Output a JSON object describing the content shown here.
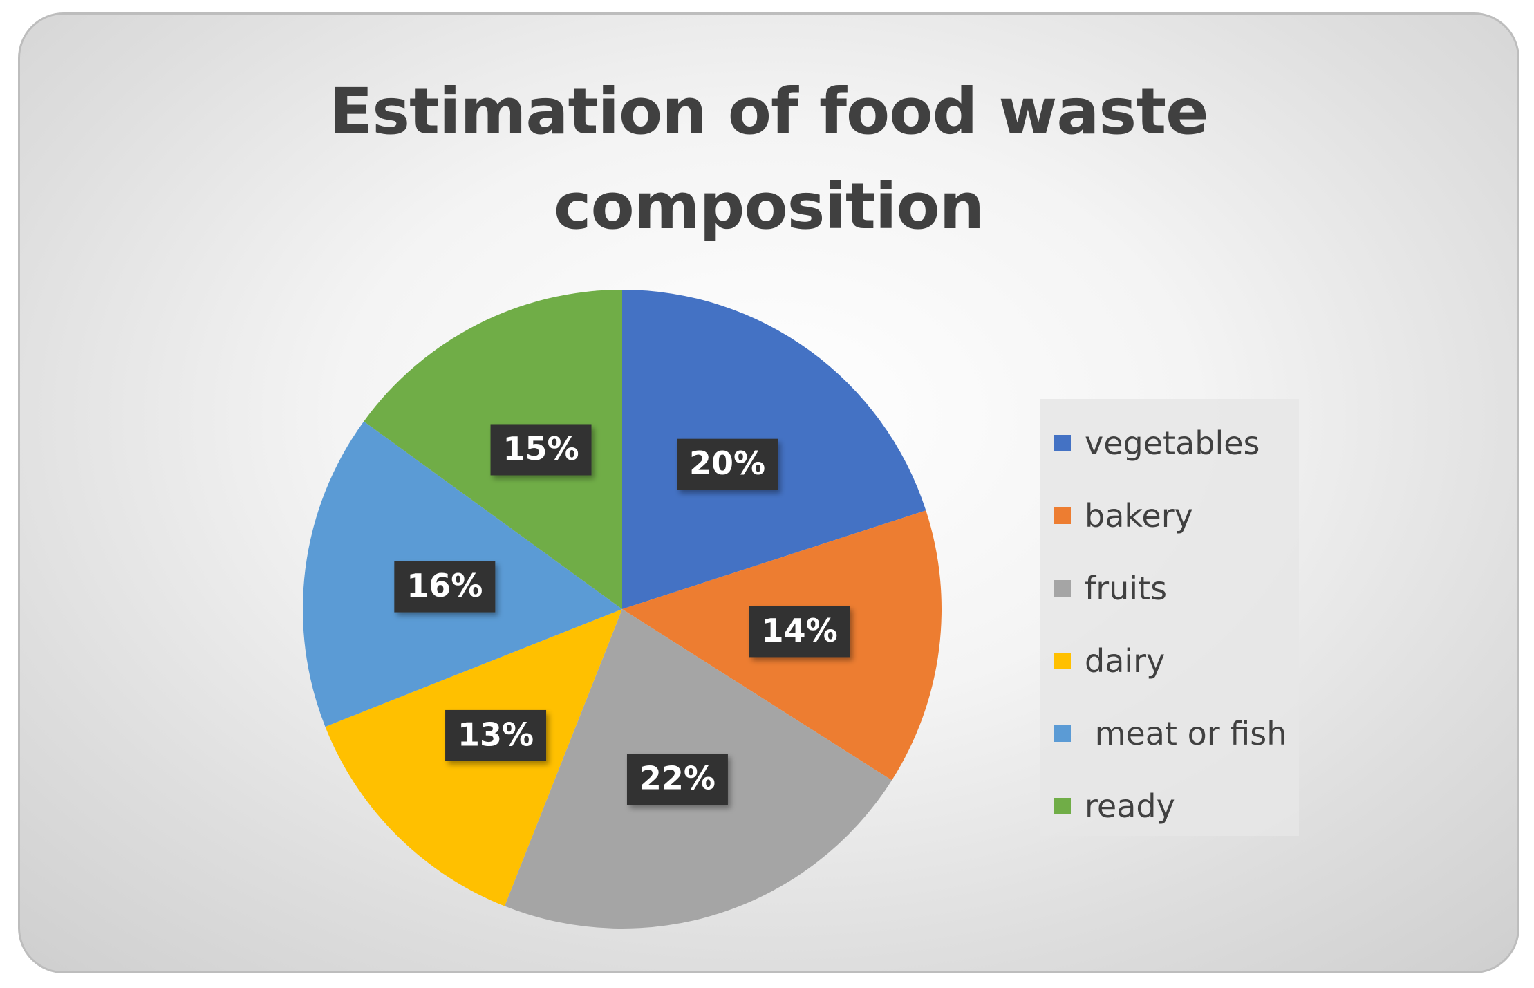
{
  "chart_data": {
    "type": "pie",
    "title": "Estimation of food waste composition",
    "title_lines": [
      "Estimation of food waste",
      "composition"
    ],
    "categories": [
      "vegetables",
      "bakery",
      "fruits",
      "dairy",
      " meat or fish",
      "ready"
    ],
    "values": [
      20,
      14,
      22,
      13,
      16,
      15
    ],
    "data_labels": [
      "20%",
      "14%",
      "22%",
      "13%",
      "16%",
      "15%"
    ],
    "colors": [
      "#4472C4",
      "#ED7D31",
      "#A5A5A5",
      "#FFC000",
      "#5B9BD5",
      "#70AD47"
    ],
    "start_angle_deg": 0,
    "direction": "clockwise",
    "legend_position": "right",
    "data_label_style": "dark box, white bold text"
  }
}
